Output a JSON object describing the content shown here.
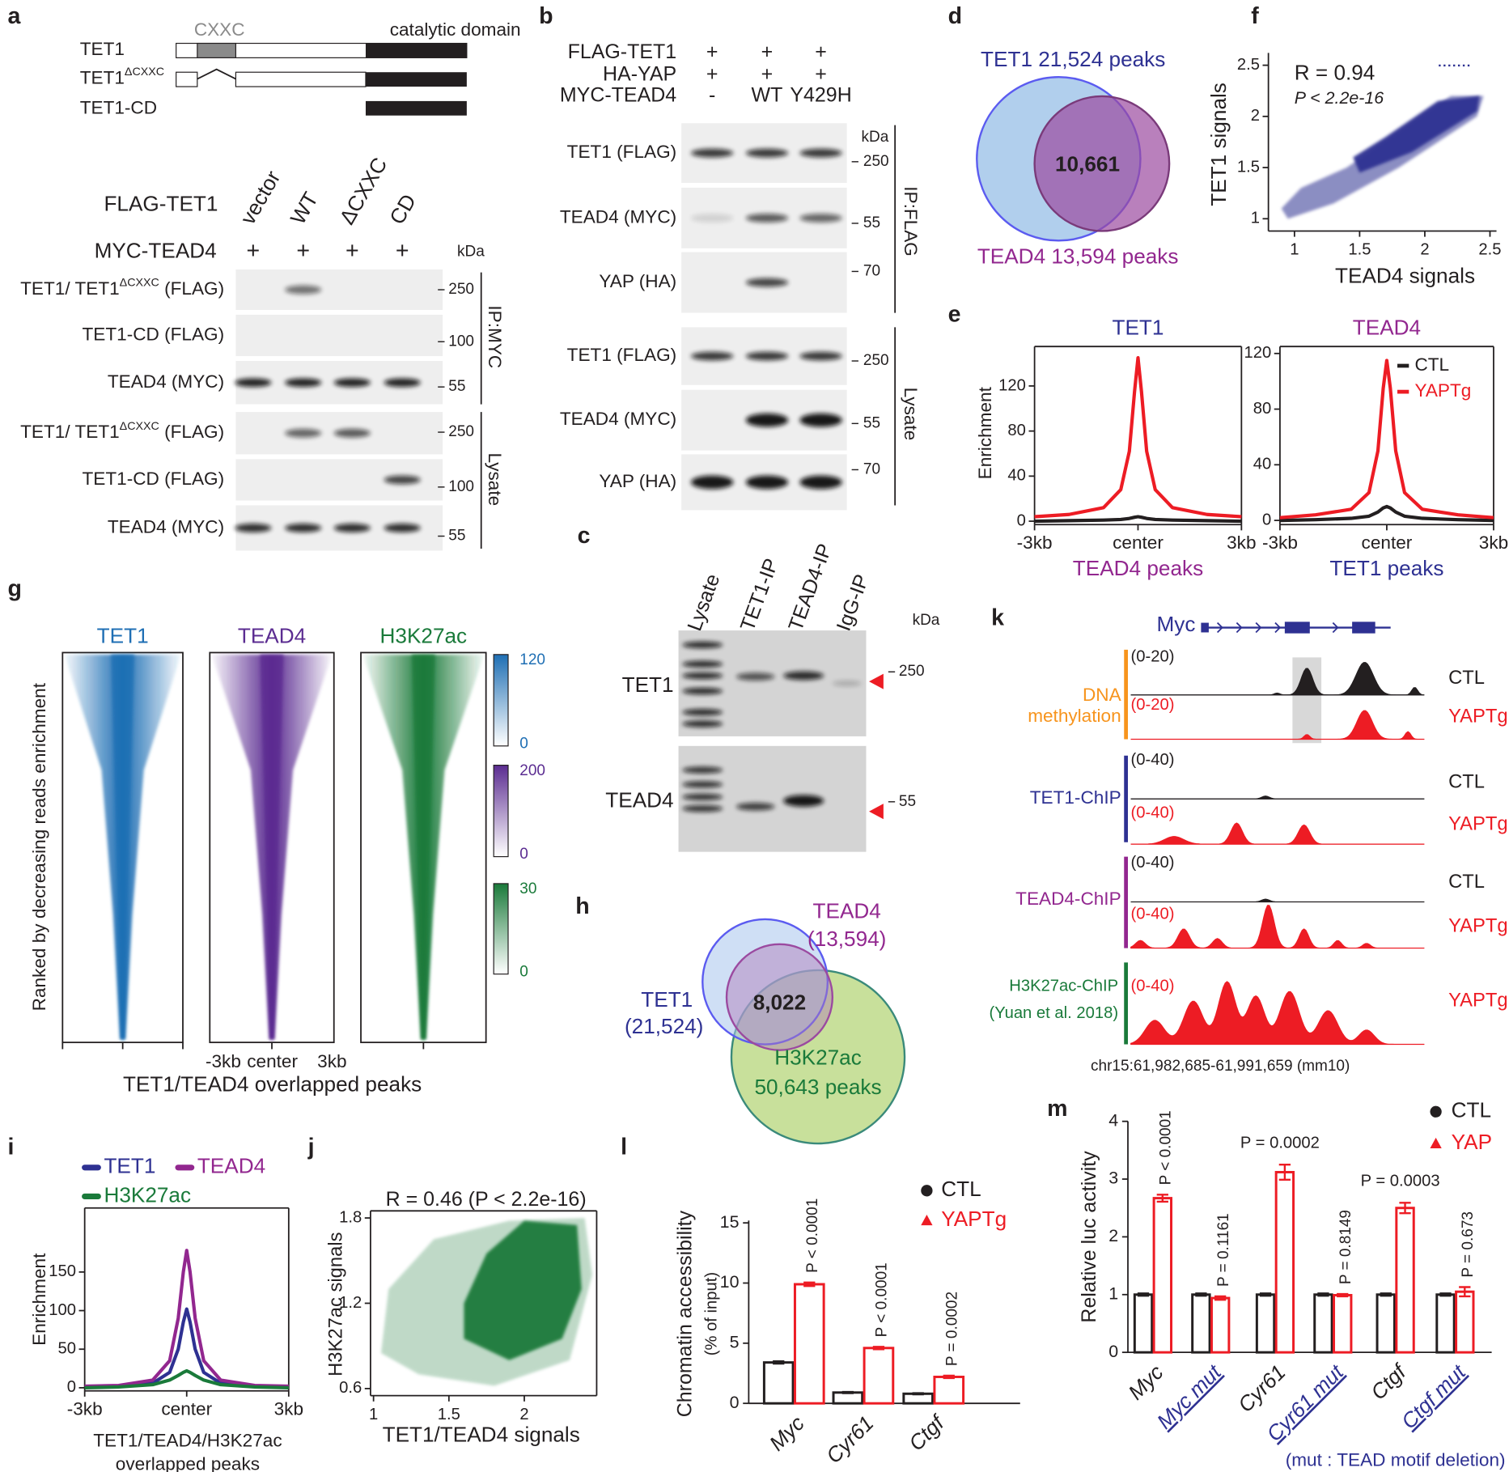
{
  "a": {
    "letter": "a",
    "domain_labels": {
      "cxxc": "CXXC",
      "catalytic": "catalytic domain"
    },
    "constructs": [
      {
        "name": "TET1"
      },
      {
        "name": "TET1",
        "sup": "ΔCXXC"
      },
      {
        "name": "TET1-CD"
      }
    ],
    "row_labels": {
      "flag": "FLAG-TET1",
      "myc": "MYC-TEAD4"
    },
    "lanes": [
      "vector",
      "WT",
      "ΔCXXC",
      "CD"
    ],
    "plus": [
      "+",
      "+",
      "+",
      "+"
    ],
    "kda": "kDa",
    "blots": [
      {
        "label": "TET1/ TET1",
        "sup": "ΔCXXC",
        "after": " (FLAG)",
        "marker": "250"
      },
      {
        "label": "TET1-CD (FLAG)",
        "marker": "100"
      },
      {
        "label": "TEAD4 (MYC)",
        "marker": "55"
      },
      {
        "label": "TET1/ TET1",
        "sup": "ΔCXXC",
        "after": " (FLAG)",
        "marker": "250"
      },
      {
        "label": "TET1-CD (FLAG)",
        "marker": "100"
      },
      {
        "label": "TEAD4 (MYC)",
        "marker": "55"
      }
    ],
    "groups": [
      "IP:MYC",
      "Lysate"
    ]
  },
  "b": {
    "letter": "b",
    "rows": [
      {
        "label": "FLAG-TET1",
        "marks": [
          "+",
          "+",
          "+"
        ]
      },
      {
        "label": "HA-YAP",
        "marks": [
          "+",
          "+",
          "+"
        ]
      },
      {
        "label": "MYC-TEAD4",
        "marks": [
          "-",
          "WT",
          "Y429H"
        ]
      }
    ],
    "kda": "kDa",
    "blots": [
      {
        "label": "TET1 (FLAG)",
        "marker": "250"
      },
      {
        "label": "TEAD4 (MYC)",
        "marker": "55"
      },
      {
        "label": "YAP (HA)",
        "marker": "70"
      },
      {
        "label": "TET1 (FLAG)",
        "marker": "250"
      },
      {
        "label": "TEAD4 (MYC)",
        "marker": "55"
      },
      {
        "label": "YAP (HA)",
        "marker": "70"
      }
    ],
    "groups": [
      "IP:FLAG",
      "Lysate"
    ]
  },
  "c": {
    "letter": "c",
    "lanes": [
      "Lysate",
      "TET1-IP",
      "TEAD4-IP",
      "IgG-IP"
    ],
    "kda": "kDa",
    "blots": [
      {
        "label": "TET1",
        "marker": "250"
      },
      {
        "label": "TEAD4",
        "marker": "55"
      }
    ]
  },
  "d": {
    "letter": "d",
    "sets": [
      {
        "label": "TET1 21,524 peaks",
        "color": "#2e3192"
      },
      {
        "label": "TEAD4 13,594 peaks",
        "color": "#92278f"
      }
    ],
    "overlap": "10,661"
  },
  "e": {
    "letter": "e",
    "ylabel": "Enrichment",
    "legend": [
      {
        "name": "CTL",
        "color": "#231f20"
      },
      {
        "name": "YAPTg",
        "color": "#ed1c24"
      }
    ],
    "x": [
      -3,
      -2,
      -1,
      -0.5,
      -0.25,
      -0.1,
      0,
      0.1,
      0.25,
      0.5,
      1,
      2,
      3
    ],
    "xlim": [
      -3,
      3
    ],
    "xticks": [
      {
        "value": -3,
        "label": "-3kb"
      },
      {
        "value": 0,
        "label": "center"
      },
      {
        "value": 3,
        "label": "3kb"
      }
    ],
    "plots": [
      {
        "title": "TET1",
        "title_color": "#2e3192",
        "xlabel": "TEAD4 peaks",
        "xlabel_color": "#92278f",
        "ylim": [
          -3,
          155
        ],
        "yticks": [
          0,
          40,
          80,
          120
        ],
        "series": [
          {
            "values": [
              0,
              0.5,
              1,
              1.5,
              2.5,
              3.5,
              4,
              3.5,
              2.5,
              1.5,
              1,
              0.5,
              0
            ]
          },
          {
            "values": [
              4,
              6,
              12,
              28,
              62,
              115,
              145,
              115,
              62,
              28,
              12,
              6,
              4
            ]
          }
        ]
      },
      {
        "title": "TEAD4",
        "title_color": "#92278f",
        "xlabel": "TET1 peaks",
        "xlabel_color": "#2e3192",
        "ylim": [
          -3,
          125
        ],
        "yticks": [
          0,
          40,
          80,
          120
        ],
        "series": [
          {
            "values": [
              0,
              0.5,
              1.5,
              3,
              6,
              9,
              10,
              9,
              6,
              3,
              1.5,
              0.5,
              0
            ]
          },
          {
            "values": [
              2,
              4,
              8,
              20,
              50,
              95,
              115,
              95,
              50,
              20,
              8,
              4,
              2
            ]
          }
        ]
      }
    ]
  },
  "f": {
    "letter": "f",
    "type": "scatter",
    "stat": "R = 0.94",
    "pvalue": "P < 2.2e-16",
    "xlabel": "TEAD4 signals",
    "ylabel": "TET1 signals",
    "color": "#2e3192",
    "xlim": [
      0.8,
      2.55
    ],
    "ylim": [
      0.88,
      2.62
    ],
    "xticks": [
      1,
      1.5,
      2,
      2.5
    ],
    "yticks": [
      1,
      1.5,
      2,
      2.5
    ]
  },
  "g": {
    "letter": "g",
    "ylabel": "Ranked by decreasing reads enrichment",
    "xlabel": "TET1/TEAD4 overlapped peaks",
    "xticks": [
      "-3kb",
      "center",
      "3kb"
    ],
    "heatmaps": [
      {
        "title": "TET1",
        "color": "#1f6fb4",
        "scale": [
          0,
          120
        ]
      },
      {
        "title": "TEAD4",
        "color": "#5b2c91",
        "scale": [
          0,
          200
        ]
      },
      {
        "title": "H3K27ac",
        "color": "#1a7a3a",
        "scale": [
          0,
          30
        ]
      }
    ]
  },
  "h": {
    "letter": "h",
    "overlap": "8,022",
    "sets": [
      {
        "name": "TET1",
        "count": "(21,524)",
        "color": "#2e3192"
      },
      {
        "name": "TEAD4",
        "count": "(13,594)",
        "color": "#92278f"
      },
      {
        "name": "H3K27ac",
        "count": "50,643 peaks",
        "color": "#1a7a3a"
      }
    ]
  },
  "i": {
    "letter": "i",
    "ylabel": "Enrichment",
    "xlabel": [
      "TET1/TEAD4/H3K27ac",
      "overlapped peaks"
    ],
    "x": [
      -3,
      -2,
      -1,
      -0.5,
      -0.25,
      -0.1,
      0,
      0.1,
      0.25,
      0.5,
      1,
      2,
      3
    ],
    "xlim": [
      -3,
      3
    ],
    "ylim": [
      -4,
      233
    ],
    "yticks": [
      0,
      50,
      100,
      150
    ],
    "xticks": [
      {
        "value": -3,
        "label": "-3kb"
      },
      {
        "value": 0,
        "label": "center"
      },
      {
        "value": 3,
        "label": "3kb"
      }
    ],
    "series": [
      {
        "name": "TET1",
        "color": "#2e3192",
        "values": [
          1,
          2,
          6,
          20,
          50,
          85,
          102,
          85,
          50,
          20,
          6,
          2,
          1
        ]
      },
      {
        "name": "TEAD4",
        "color": "#92278f",
        "values": [
          2,
          3,
          10,
          35,
          90,
          150,
          178,
          150,
          90,
          35,
          10,
          3,
          2
        ]
      },
      {
        "name": "H3K27ac",
        "color": "#1a7a3a",
        "values": [
          0,
          1,
          4,
          10,
          16,
          20,
          22,
          20,
          16,
          10,
          4,
          1,
          0
        ]
      }
    ]
  },
  "j": {
    "letter": "j",
    "type": "scatter",
    "stat": "R = 0.46 (P < 2.2e-16)",
    "xlabel": "TET1/TEAD4 signals",
    "ylabel": "H3K27ac signals",
    "color": "#1a7a3a",
    "xlim": [
      0.98,
      2.48
    ],
    "ylim": [
      0.55,
      1.85
    ],
    "xticks": [
      1,
      1.5,
      2
    ],
    "yticks": [
      0.6,
      1.2,
      1.8
    ]
  },
  "k": {
    "letter": "k",
    "gene": "Myc",
    "tracks": [
      {
        "label": [
          "DNA",
          "methylation"
        ],
        "color": "#f7941d",
        "rows": [
          {
            "range": "(0-20)",
            "sample": "CTL"
          },
          {
            "range": "(0-20)",
            "sample": "YAPTg"
          }
        ]
      },
      {
        "label": [
          "TET1-ChIP"
        ],
        "color": "#2e3192",
        "rows": [
          {
            "range": "(0-40)",
            "sample": "CTL"
          },
          {
            "range": "(0-40)",
            "sample": "YAPTg"
          }
        ]
      },
      {
        "label": [
          "TEAD4-ChIP"
        ],
        "color": "#92278f",
        "rows": [
          {
            "range": "(0-40)",
            "sample": "CTL"
          },
          {
            "range": "(0-40)",
            "sample": "YAPTg"
          }
        ]
      },
      {
        "label": [
          "H3K27ac-ChIP",
          "(Yuan et al. 2018)"
        ],
        "color": "#1a7a3a",
        "rows": [
          {
            "range": "(0-40)",
            "sample": "YAPTg"
          }
        ]
      }
    ],
    "coords": "chr15:61,982,685-61,991,659 (mm10)"
  },
  "l": {
    "letter": "l",
    "type": "bar",
    "ylabel": [
      "Chromatin accessibility",
      "(% of input)"
    ],
    "categories": [
      "Myc",
      "Cyr61",
      "Ctgf"
    ],
    "series": [
      {
        "name": "CTL",
        "color": "#231f20",
        "values": [
          3.4,
          0.9,
          0.8
        ],
        "errors": [
          0.1,
          0.05,
          0.05
        ]
      },
      {
        "name": "YAPTg",
        "color": "#ed1c24",
        "values": [
          9.9,
          4.6,
          2.2
        ],
        "errors": [
          0.15,
          0.1,
          0.1
        ]
      }
    ],
    "pvalues": [
      "P < 0.0001",
      "P < 0.0001",
      "P = 0.0002"
    ],
    "ylim": [
      0,
      15.2
    ],
    "yticks": [
      0,
      5,
      10,
      15
    ]
  },
  "m": {
    "letter": "m",
    "type": "bar",
    "ylabel": "Relative luc activity",
    "categories": [
      "Myc",
      "Myc mut",
      "Cyr61",
      "Cyr61 mut",
      "Ctgf",
      "Ctgf mut"
    ],
    "series": [
      {
        "name": "CTL",
        "color": "#231f20",
        "values": [
          1,
          1,
          1,
          1,
          1,
          1
        ],
        "errors": [
          0.02,
          0.02,
          0.02,
          0.02,
          0.02,
          0.02
        ]
      },
      {
        "name": "YAP",
        "color": "#ed1c24",
        "values": [
          2.67,
          0.94,
          3.12,
          0.99,
          2.5,
          1.05
        ],
        "errors": [
          0.06,
          0.03,
          0.13,
          0.02,
          0.09,
          0.08
        ]
      }
    ],
    "pvalues": [
      "P < 0.0001",
      "P = 0.1161",
      "P = 0.0002",
      "P = 0.8149",
      "P = 0.0003",
      "P = 0.673"
    ],
    "ylim": [
      0,
      4
    ],
    "yticks": [
      0,
      1,
      2,
      3,
      4
    ],
    "note": "(mut : TEAD motif deletion)"
  }
}
